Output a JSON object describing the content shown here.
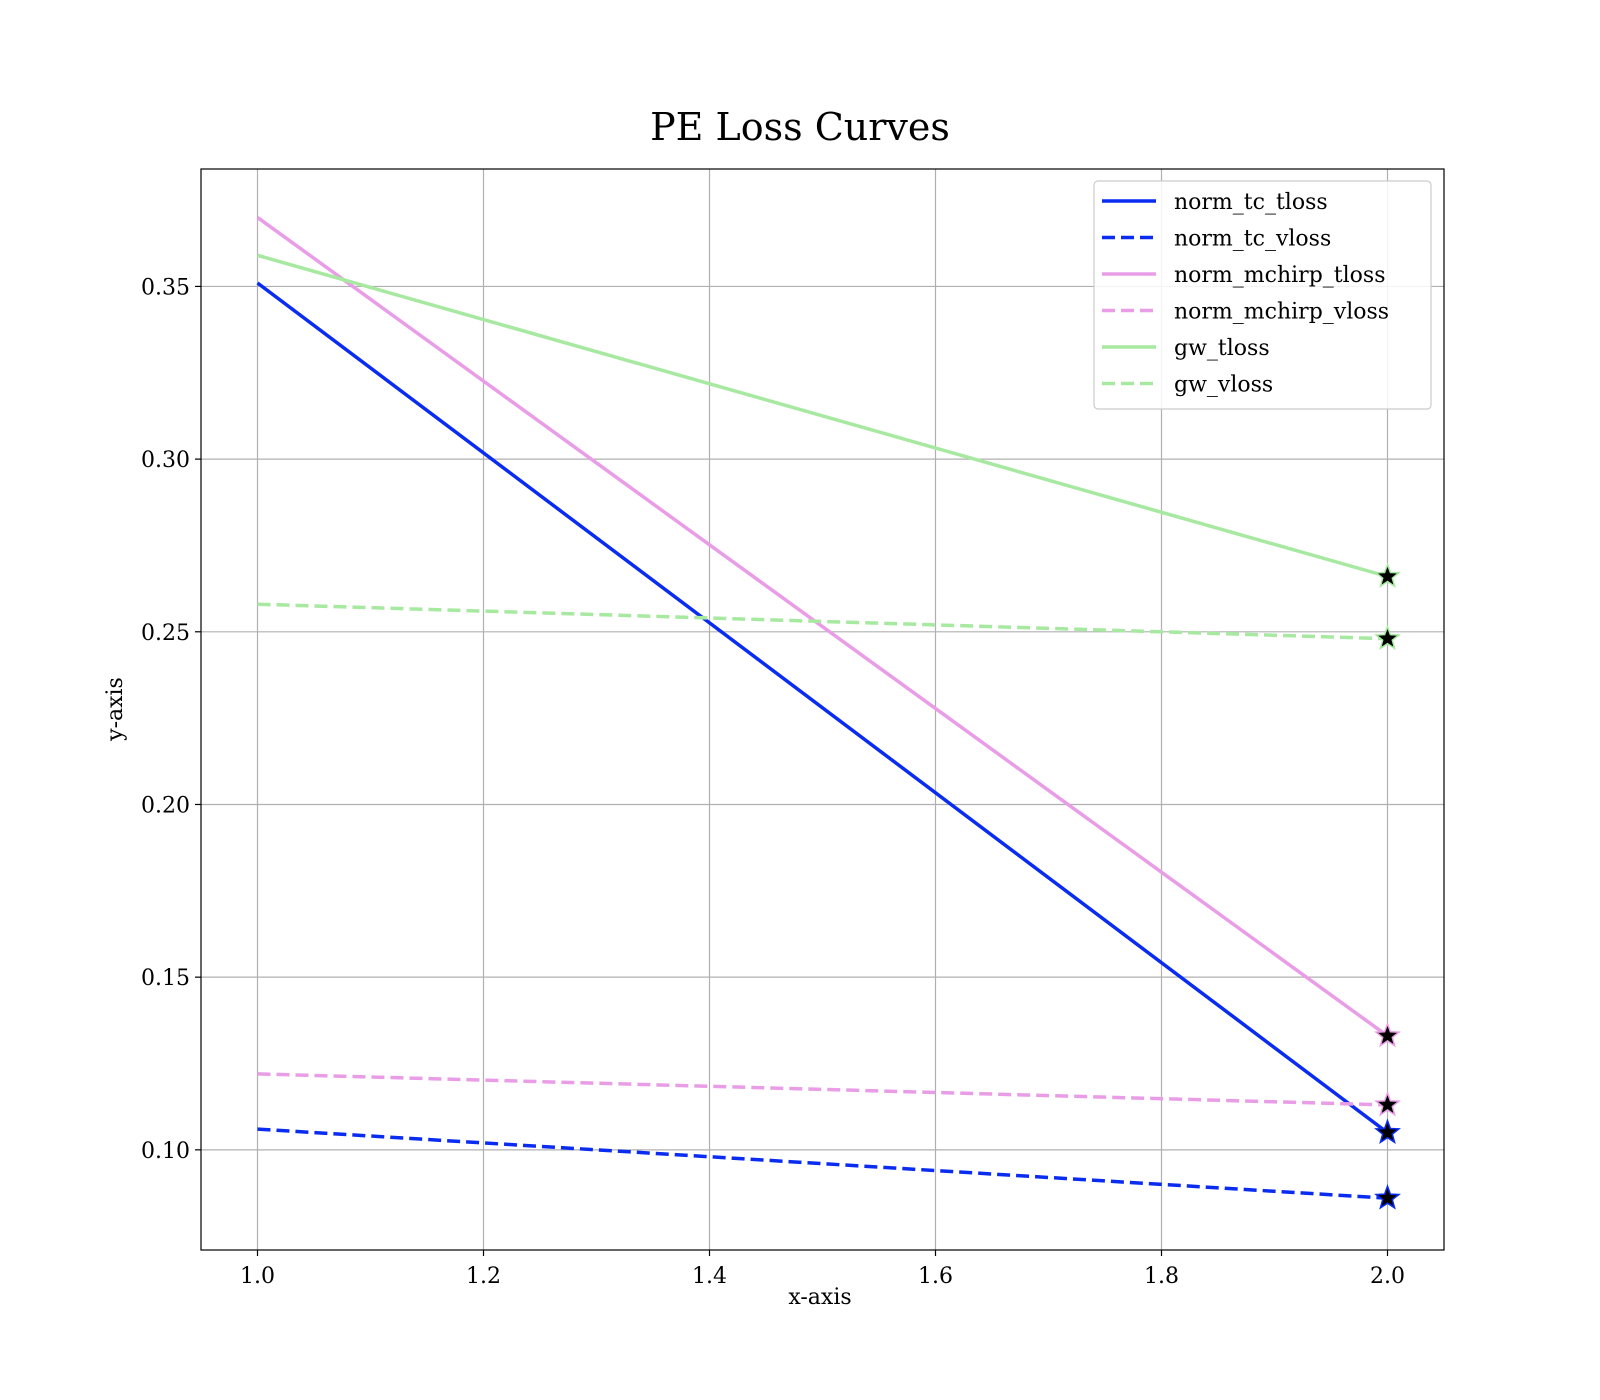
{
  "chart_data": {
    "type": "line",
    "title": "PE Loss Curves",
    "xlabel": "x-axis",
    "ylabel": "y-axis",
    "xlim": [
      0.95,
      2.05
    ],
    "ylim": [
      0.071,
      0.384
    ],
    "xticks": [
      1.0,
      1.2,
      1.4,
      1.6,
      1.8,
      2.0
    ],
    "xtick_labels": [
      "1.0",
      "1.2",
      "1.4",
      "1.6",
      "1.8",
      "2.0"
    ],
    "yticks": [
      0.1,
      0.15,
      0.2,
      0.25,
      0.3,
      0.35
    ],
    "ytick_labels": [
      "0.10",
      "0.15",
      "0.20",
      "0.25",
      "0.30",
      "0.35"
    ],
    "grid": true,
    "legend_position": "top-right",
    "marker_at_last_point": "star",
    "x": [
      1.0,
      2.0
    ],
    "series": [
      {
        "name": "norm_tc_tloss",
        "values": [
          0.351,
          0.105
        ],
        "color": "#0a2cf0",
        "style": "solid"
      },
      {
        "name": "norm_tc_vloss",
        "values": [
          0.106,
          0.086
        ],
        "color": "#0a2cf0",
        "style": "dashed"
      },
      {
        "name": "norm_mchirp_tloss",
        "values": [
          0.37,
          0.133
        ],
        "color": "#e99de6",
        "style": "solid"
      },
      {
        "name": "norm_mchirp_vloss",
        "values": [
          0.122,
          0.113
        ],
        "color": "#e99de6",
        "style": "dashed"
      },
      {
        "name": "gw_tloss",
        "values": [
          0.359,
          0.266
        ],
        "color": "#a7e9a0",
        "style": "solid"
      },
      {
        "name": "gw_vloss",
        "values": [
          0.258,
          0.248
        ],
        "color": "#a7e9a0",
        "style": "dashed"
      }
    ]
  }
}
